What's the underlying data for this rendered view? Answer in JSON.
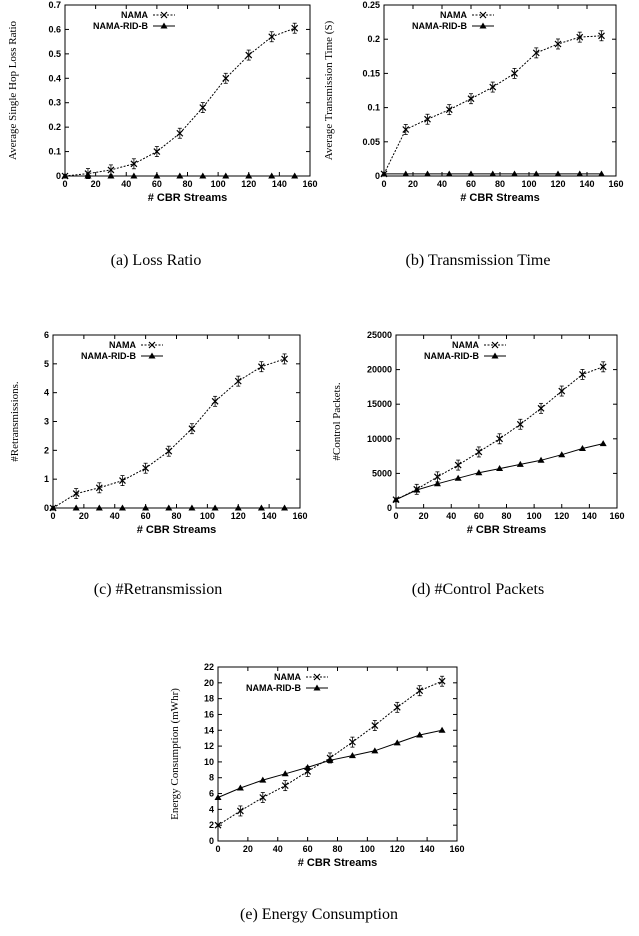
{
  "chart_data": [
    {
      "type": "line",
      "caption": "(a) Loss Ratio",
      "xlabel": "# CBR Streams",
      "ylabel": "Average Single Hop Loss Ratio",
      "xlim": [
        0,
        160
      ],
      "ylim": [
        0,
        0.7
      ],
      "xticks": [
        0,
        20,
        40,
        60,
        80,
        100,
        120,
        140,
        160
      ],
      "yticks": [
        0,
        0.1,
        0.2,
        0.3,
        0.4,
        0.5,
        0.6,
        0.7
      ],
      "x": [
        0,
        15,
        30,
        45,
        60,
        75,
        90,
        105,
        120,
        135,
        150
      ],
      "series": [
        {
          "name": "NAMA",
          "marker": "x",
          "values": [
            0,
            0.01,
            0.025,
            0.05,
            0.1,
            0.175,
            0.28,
            0.4,
            0.495,
            0.57,
            0.605
          ]
        },
        {
          "name": "NAMA-RID-B",
          "marker": "triangle",
          "values": [
            0,
            0,
            0,
            0,
            0,
            0,
            0,
            0,
            0,
            0,
            0
          ]
        }
      ],
      "legend": "top-left"
    },
    {
      "type": "line",
      "caption": "(b) Transmission Time",
      "xlabel": "# CBR Streams",
      "ylabel": "Average Transmission Time (S)",
      "xlim": [
        0,
        160
      ],
      "ylim": [
        0,
        0.25
      ],
      "xticks": [
        0,
        20,
        40,
        60,
        80,
        100,
        120,
        140,
        160
      ],
      "yticks": [
        0,
        0.05,
        0.1,
        0.15,
        0.2,
        0.25
      ],
      "x": [
        0,
        15,
        30,
        45,
        60,
        75,
        90,
        105,
        120,
        135,
        150
      ],
      "series": [
        {
          "name": "NAMA",
          "marker": "x",
          "values": [
            0.003,
            0.068,
            0.083,
            0.097,
            0.113,
            0.13,
            0.15,
            0.18,
            0.193,
            0.203,
            0.205
          ]
        },
        {
          "name": "NAMA-RID-B",
          "marker": "triangle",
          "values": [
            0.003,
            0.003,
            0.003,
            0.003,
            0.003,
            0.003,
            0.003,
            0.003,
            0.003,
            0.003,
            0.003
          ]
        }
      ],
      "legend": "top-left"
    },
    {
      "type": "line",
      "caption": "(c) #Retransmission",
      "xlabel": "# CBR Streams",
      "ylabel": "#Retransmissions.",
      "xlim": [
        0,
        160
      ],
      "ylim": [
        0,
        6
      ],
      "xticks": [
        0,
        20,
        40,
        60,
        80,
        100,
        120,
        140,
        160
      ],
      "yticks": [
        0,
        1,
        2,
        3,
        4,
        5,
        6
      ],
      "x": [
        0,
        15,
        30,
        45,
        60,
        75,
        90,
        105,
        120,
        135,
        150
      ],
      "series": [
        {
          "name": "NAMA",
          "marker": "x",
          "values": [
            0,
            0.5,
            0.7,
            0.95,
            1.38,
            1.97,
            2.75,
            3.7,
            4.4,
            4.9,
            5.17
          ]
        },
        {
          "name": "NAMA-RID-B",
          "marker": "triangle",
          "values": [
            0,
            0,
            0,
            0,
            0,
            0,
            0,
            0,
            0,
            0,
            0
          ]
        }
      ],
      "legend": "top-left"
    },
    {
      "type": "line",
      "caption": "(d) #Control Packets",
      "xlabel": "# CBR Streams",
      "ylabel": "#Control Packets.",
      "xlim": [
        0,
        160
      ],
      "ylim": [
        0,
        25000
      ],
      "xticks": [
        0,
        20,
        40,
        60,
        80,
        100,
        120,
        140,
        160
      ],
      "yticks": [
        0,
        5000,
        10000,
        15000,
        20000,
        25000
      ],
      "x": [
        0,
        15,
        30,
        45,
        60,
        75,
        90,
        105,
        120,
        135,
        150
      ],
      "series": [
        {
          "name": "NAMA",
          "marker": "x",
          "values": [
            1200,
            2700,
            4500,
            6200,
            8100,
            10000,
            12100,
            14400,
            16900,
            19300,
            20400
          ]
        },
        {
          "name": "NAMA-RID-B",
          "marker": "triangle",
          "values": [
            1200,
            2600,
            3500,
            4300,
            5100,
            5700,
            6300,
            6900,
            7700,
            8600,
            9300
          ]
        }
      ],
      "legend": "top-left"
    },
    {
      "type": "line",
      "caption": "(e) Energy Consumption",
      "xlabel": "# CBR Streams",
      "ylabel": "Energy Consumption (mWhr)",
      "xlim": [
        0,
        160
      ],
      "ylim": [
        0,
        22
      ],
      "xticks": [
        0,
        20,
        40,
        60,
        80,
        100,
        120,
        140,
        160
      ],
      "yticks": [
        0,
        2,
        4,
        6,
        8,
        10,
        12,
        14,
        16,
        18,
        20,
        22
      ],
      "x": [
        0,
        15,
        30,
        45,
        60,
        75,
        90,
        105,
        120,
        135,
        150
      ],
      "series": [
        {
          "name": "NAMA",
          "marker": "x",
          "values": [
            2.0,
            3.8,
            5.5,
            7.0,
            8.8,
            10.5,
            12.5,
            14.6,
            16.9,
            19.0,
            20.2
          ]
        },
        {
          "name": "NAMA-RID-B",
          "marker": "triangle",
          "values": [
            5.5,
            6.7,
            7.7,
            8.5,
            9.3,
            10.2,
            10.8,
            11.4,
            12.4,
            13.4,
            14.0
          ]
        }
      ],
      "legend": "top-left"
    }
  ]
}
